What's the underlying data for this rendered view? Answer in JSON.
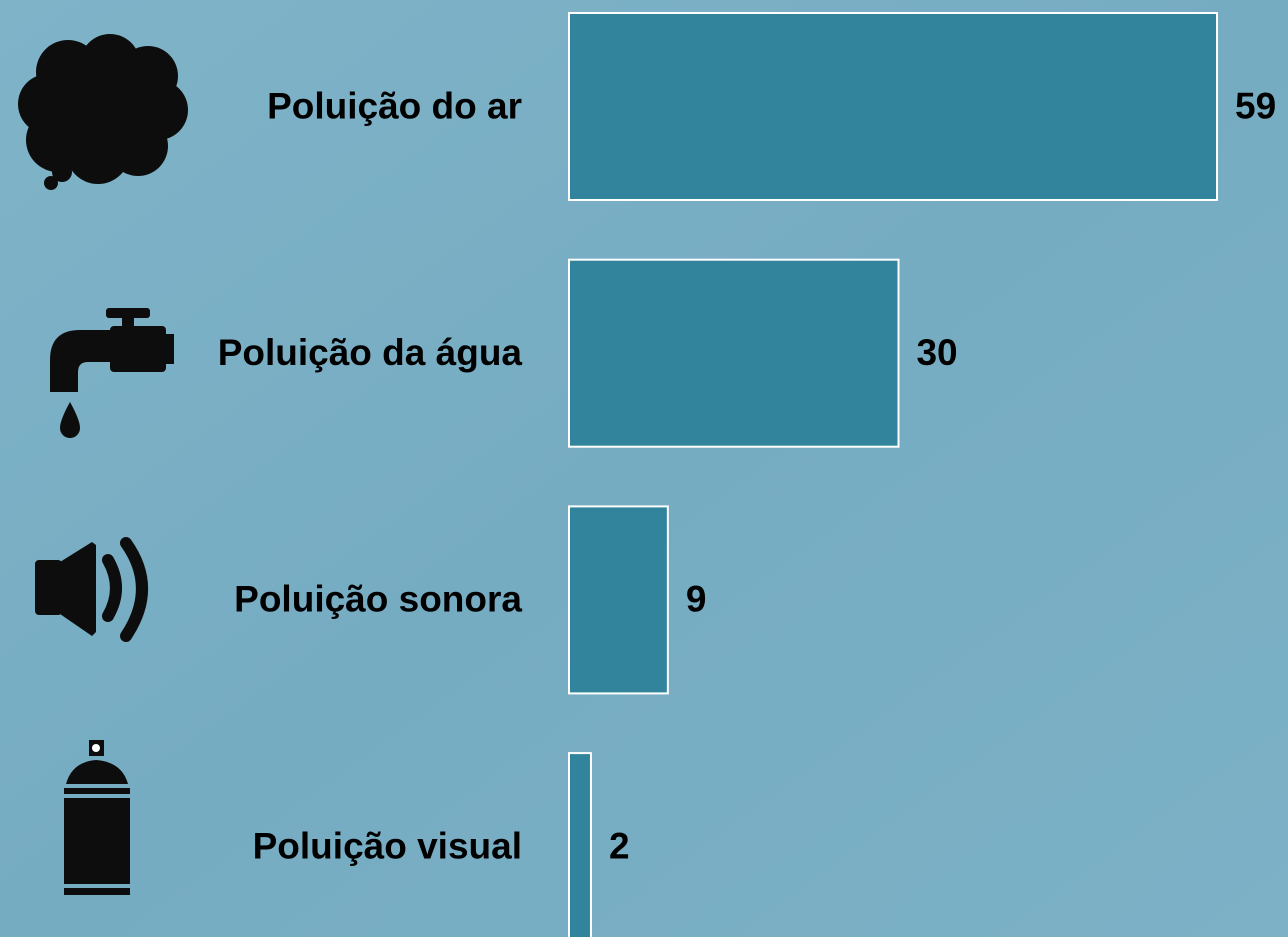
{
  "chart_data": {
    "type": "bar",
    "orientation": "horizontal",
    "categories": [
      "Poluição do ar",
      "Poluição da água",
      "Poluição sonora",
      "Poluição visual"
    ],
    "values": [
      59,
      30,
      9,
      2
    ],
    "color": "#31849b"
  }
}
